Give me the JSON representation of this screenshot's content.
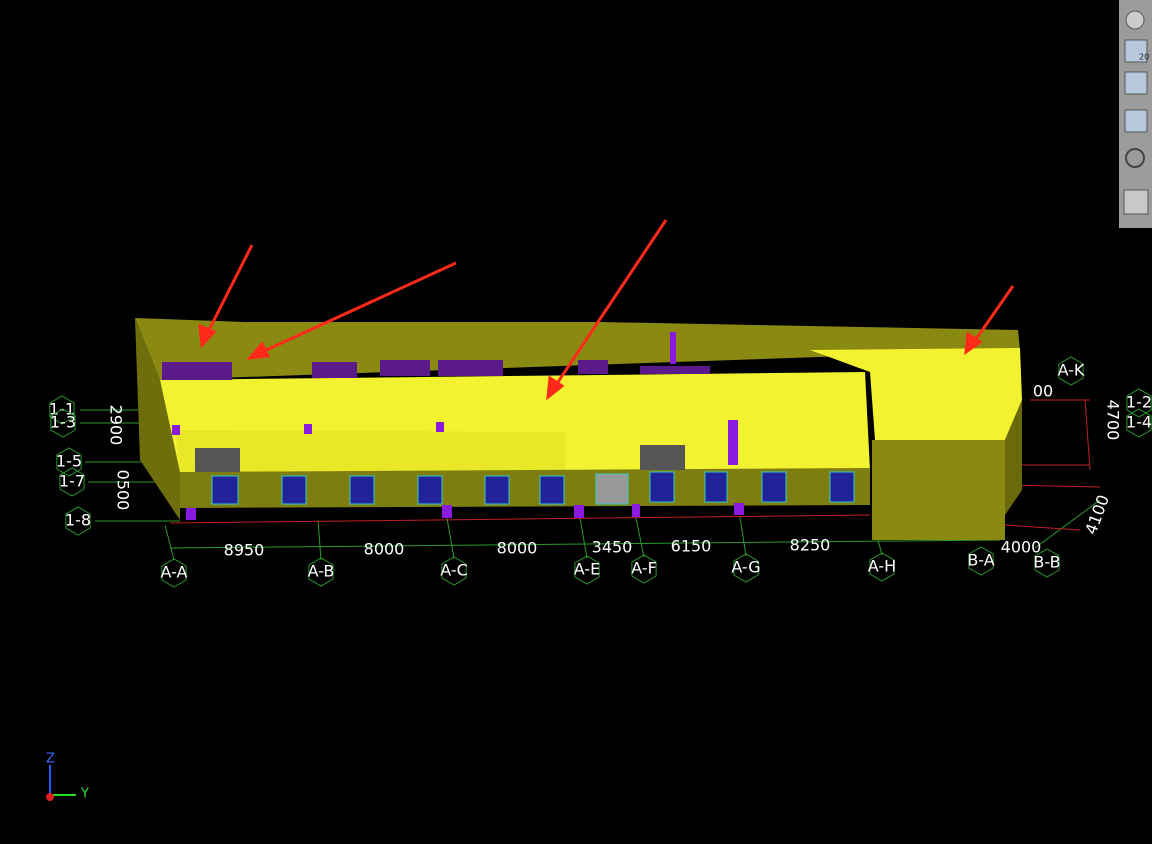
{
  "grid_axes": [
    "A-A",
    "A-B",
    "A-C",
    "A-E",
    "A-F",
    "A-G",
    "A-H",
    "B-A",
    "B-B",
    "A-K"
  ],
  "row_axes": [
    "1-1",
    "1-3",
    "1-5",
    "1-7",
    "1-8",
    "1-2",
    "1-4"
  ],
  "dimensions": [
    "8950",
    "8000",
    "8000",
    "3450",
    "6150",
    "8250",
    "4000",
    "00"
  ],
  "vertical_dimensions": [
    "2900",
    "0500",
    "4700",
    "4100"
  ],
  "toolbar": {
    "view_badge": "20"
  },
  "triad": {
    "z": "Z",
    "y": "Y"
  }
}
